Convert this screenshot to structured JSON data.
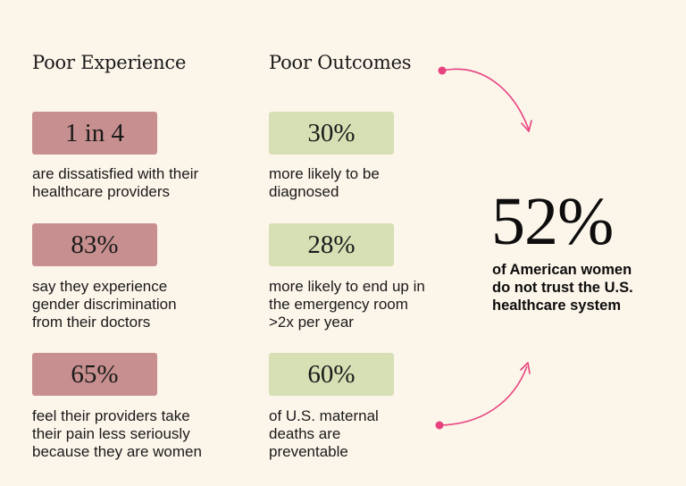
{
  "columns": {
    "experience": {
      "title": "Poor Experience",
      "items": [
        {
          "stat": "1 in 4",
          "lines": [
            "are dissatisfied with their",
            "healthcare providers"
          ]
        },
        {
          "stat": "83%",
          "lines": [
            "say they experience",
            "gender discrimination",
            "from their doctors"
          ]
        },
        {
          "stat": "65%",
          "lines": [
            "feel their providers take",
            "their pain less seriously",
            "because they are women"
          ]
        }
      ]
    },
    "outcomes": {
      "title": "Poor Outcomes",
      "items": [
        {
          "stat": "30%",
          "lines": [
            "more likely to be",
            "diagnosed"
          ]
        },
        {
          "stat": "28%",
          "lines": [
            "more likely to end up in",
            "the emergency room",
            ">2x per year"
          ]
        },
        {
          "stat": "60%",
          "lines": [
            "of U.S. maternal",
            "deaths are",
            "preventable"
          ]
        }
      ]
    }
  },
  "summary": {
    "stat": "52%",
    "lines": [
      "of American women",
      "do not trust the U.S.",
      "healthcare system"
    ]
  },
  "colors": {
    "background": "#fcf5ea",
    "experience_box": "#c78f8f",
    "outcome_box": "#d7e0b5",
    "arrow": "#e8417f"
  },
  "icons": [
    "curved-arrow-top-icon",
    "curved-arrow-bottom-icon"
  ]
}
